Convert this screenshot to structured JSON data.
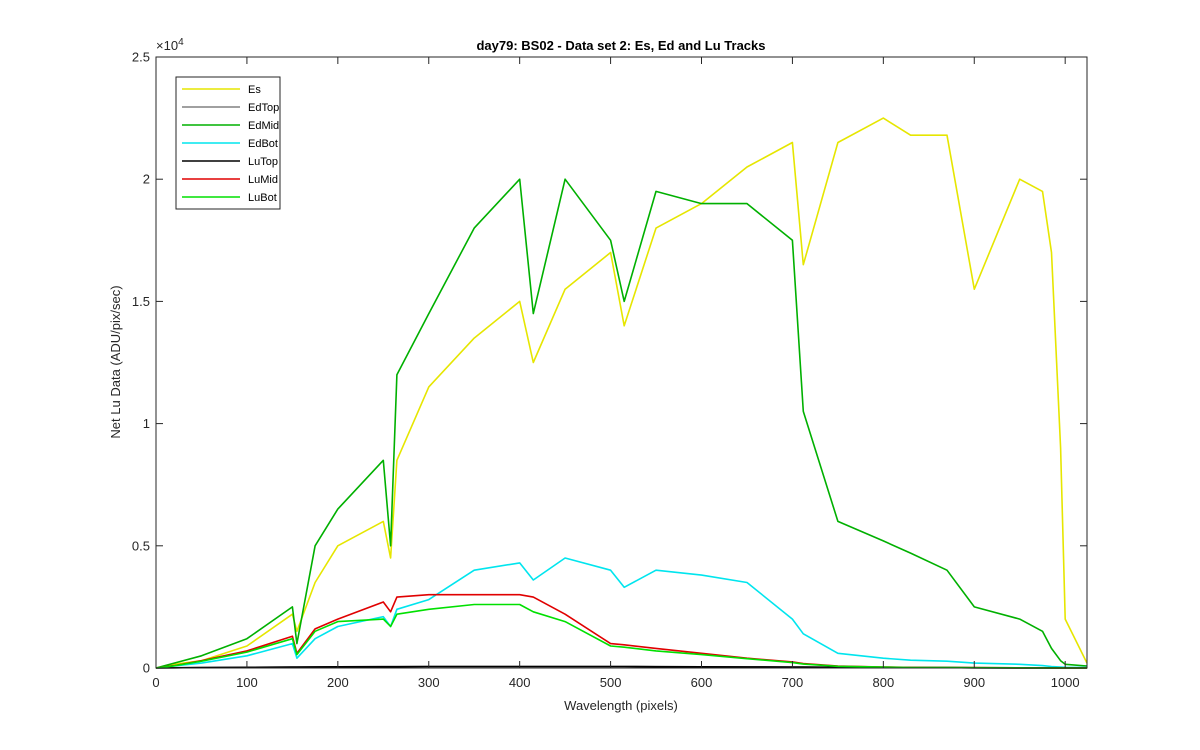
{
  "chart_data": {
    "type": "line",
    "title": "day79: BS02 - Data set 2: Es, Ed and Lu Tracks",
    "xlabel": "Wavelength (pixels)",
    "ylabel": "Net Lu Data (ADU/pix/sec)",
    "y_exponent_label": "×10^4",
    "xlim": [
      0,
      1024
    ],
    "ylim": [
      0,
      25000
    ],
    "x_ticks": [
      0,
      100,
      200,
      300,
      400,
      500,
      600,
      700,
      800,
      900,
      1000
    ],
    "x_tick_labels": [
      "0",
      "100",
      "200",
      "300",
      "400",
      "500",
      "600",
      "700",
      "800",
      "900",
      "1000"
    ],
    "y_ticks": [
      0,
      5000,
      10000,
      15000,
      20000,
      25000
    ],
    "y_tick_labels": [
      "0",
      "0.5",
      "1",
      "1.5",
      "2",
      "2.5"
    ],
    "grid": false,
    "legend_position": "top-left",
    "x": [
      0,
      20,
      50,
      100,
      150,
      155,
      175,
      200,
      250,
      258,
      265,
      300,
      350,
      400,
      415,
      450,
      500,
      515,
      550,
      600,
      650,
      700,
      712,
      750,
      800,
      830,
      870,
      900,
      950,
      975,
      985,
      995,
      1000,
      1024
    ],
    "series": [
      {
        "name": "Es",
        "color": "#e6e600",
        "values": [
          0,
          150,
          300,
          900,
          2200,
          1500,
          3500,
          5000,
          6000,
          4500,
          8500,
          11500,
          13500,
          15000,
          12500,
          15500,
          17000,
          14000,
          18000,
          19000,
          20500,
          21500,
          16500,
          21500,
          22500,
          21800,
          21800,
          15500,
          20000,
          19500,
          17000,
          9000,
          2000,
          200
        ]
      },
      {
        "name": "EdTop",
        "color": "#808080",
        "values": [
          0,
          10,
          20,
          30,
          40,
          35,
          45,
          50,
          55,
          55,
          55,
          60,
          60,
          60,
          60,
          60,
          60,
          60,
          55,
          50,
          45,
          40,
          40,
          30,
          25,
          20,
          15,
          10,
          5,
          5,
          5,
          5,
          5,
          0
        ]
      },
      {
        "name": "EdMid",
        "color": "#00b000",
        "values": [
          0,
          200,
          500,
          1200,
          2500,
          1000,
          5000,
          6500,
          8500,
          5000,
          12000,
          14500,
          18000,
          20000,
          14500,
          20000,
          17500,
          15000,
          19500,
          19000,
          19000,
          17500,
          10500,
          6000,
          5200,
          4700,
          4000,
          2500,
          2000,
          1500,
          800,
          300,
          150,
          80
        ]
      },
      {
        "name": "EdBot",
        "color": "#00e5ee",
        "values": [
          0,
          80,
          200,
          500,
          1000,
          400,
          1200,
          1700,
          2100,
          1700,
          2400,
          2800,
          4000,
          4300,
          3600,
          4500,
          4000,
          3300,
          4000,
          3800,
          3500,
          2000,
          1400,
          600,
          400,
          320,
          280,
          200,
          150,
          100,
          60,
          40,
          30,
          20
        ]
      },
      {
        "name": "LuTop",
        "color": "#000000",
        "values": [
          0,
          10,
          20,
          30,
          40,
          35,
          45,
          50,
          55,
          55,
          55,
          60,
          60,
          60,
          60,
          60,
          60,
          60,
          55,
          50,
          45,
          40,
          40,
          30,
          25,
          20,
          15,
          10,
          5,
          5,
          5,
          5,
          5,
          0
        ]
      },
      {
        "name": "LuMid",
        "color": "#e00000",
        "values": [
          0,
          100,
          300,
          700,
          1300,
          600,
          1600,
          2000,
          2700,
          2300,
          2900,
          3000,
          3000,
          3000,
          2900,
          2200,
          1000,
          950,
          800,
          600,
          400,
          250,
          180,
          80,
          40,
          25,
          20,
          15,
          10,
          8,
          6,
          5,
          5,
          0
        ]
      },
      {
        "name": "LuBot",
        "color": "#00e000",
        "values": [
          0,
          90,
          280,
          650,
          1200,
          550,
          1500,
          1900,
          2000,
          1700,
          2200,
          2400,
          2600,
          2600,
          2300,
          1900,
          900,
          850,
          700,
          550,
          380,
          220,
          160,
          70,
          35,
          22,
          18,
          12,
          8,
          6,
          5,
          4,
          4,
          0
        ]
      }
    ]
  }
}
